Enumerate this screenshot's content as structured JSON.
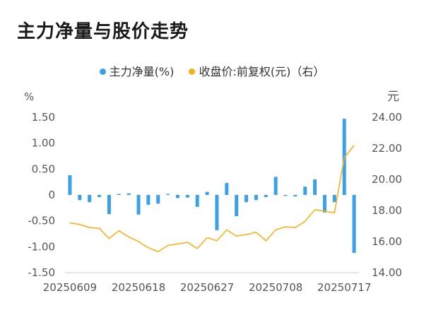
{
  "title": "主力净量与股价走势",
  "legend": [
    {
      "label": "主力净量(%)",
      "color": "#3ba0e6"
    },
    {
      "label": "收盘价:前复权(元)（右）",
      "color": "#f5b21f"
    }
  ],
  "chart_data": {
    "type": "bar+line",
    "left_axis_unit": "%",
    "right_axis_unit": "元",
    "left_ylim": [
      -1.5,
      1.5
    ],
    "left_ticks": [
      "1.50",
      "1.00",
      "0.50",
      "0",
      "-0.50",
      "-1.00",
      "-1.50"
    ],
    "right_ylim": [
      14.0,
      24.0
    ],
    "right_ticks": [
      "24.00",
      "22.00",
      "20.00",
      "18.00",
      "16.00",
      "14.00"
    ],
    "x_tick_labels": [
      "20250609",
      "20250618",
      "20250627",
      "20250708",
      "20250717"
    ],
    "x_tick_index": [
      0,
      7,
      14,
      21,
      28
    ],
    "bar_colors": {
      "default": "#3ba0e6"
    },
    "series": [
      {
        "name": "主力净量(%)",
        "kind": "bar",
        "values": [
          0.38,
          -0.1,
          -0.14,
          -0.04,
          -0.37,
          0.02,
          0.03,
          -0.38,
          -0.19,
          -0.17,
          0.02,
          -0.06,
          -0.05,
          -0.23,
          0.06,
          -0.68,
          0.23,
          -0.41,
          -0.14,
          -0.1,
          -0.04,
          0.35,
          -0.02,
          -0.03,
          0.16,
          0.3,
          -0.34,
          -0.14,
          1.47,
          -1.12
        ]
      },
      {
        "name": "收盘价:前复权(元)（右）",
        "kind": "line",
        "color": "#f5b21f",
        "values": [
          17.2,
          17.1,
          16.9,
          16.85,
          16.2,
          16.7,
          16.3,
          16.0,
          15.6,
          15.35,
          15.75,
          15.85,
          15.95,
          15.55,
          16.25,
          16.05,
          16.75,
          16.35,
          16.45,
          16.6,
          16.05,
          16.75,
          16.95,
          16.9,
          17.3,
          18.05,
          17.95,
          17.85,
          21.4,
          22.2
        ]
      }
    ],
    "grid": false,
    "legend_position": "top-center"
  }
}
